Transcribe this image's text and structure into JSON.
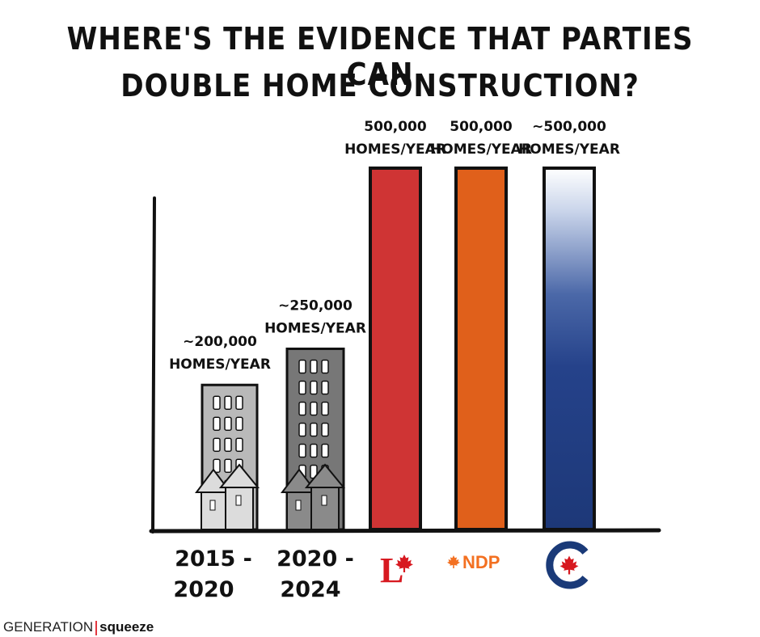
{
  "chart_data": {
    "type": "bar",
    "title": "Where's the evidence that parties can double home construction?",
    "title_lines": [
      "Where's the evidence that parties can",
      "double home construction?"
    ],
    "categories": [
      "2015 - 2020",
      "2020 - 2024",
      "Liberal",
      "NDP",
      "Conservative"
    ],
    "values": [
      200000,
      250000,
      500000,
      500000,
      500000
    ],
    "value_labels": [
      [
        "~200,000",
        "Homes/Year"
      ],
      [
        "~250,000",
        "Homes/Year"
      ],
      [
        "500,000",
        "Homes/Year"
      ],
      [
        "500,000",
        "Homes/Year"
      ],
      [
        "~500,000",
        "Homes/Year"
      ]
    ],
    "category_labels": [
      [
        "2015 -",
        "2020"
      ],
      [
        "2020 -",
        "2024"
      ]
    ],
    "party_logos": [
      "liberal-logo",
      "ndp-logo",
      "conservative-logo"
    ],
    "ndp_logo_text": "NDP",
    "liberal_logo_text": "L",
    "colors": [
      "#b9b9b9",
      "#777777",
      "#cf3434",
      "#e0601b",
      "#1f3a78"
    ],
    "ylim": [
      0,
      600000
    ],
    "xlabel": "",
    "ylabel": "",
    "grid": false,
    "legend": "none"
  },
  "footer": {
    "brand_part1": "GENERATION",
    "brand_part2": "squeeze"
  }
}
